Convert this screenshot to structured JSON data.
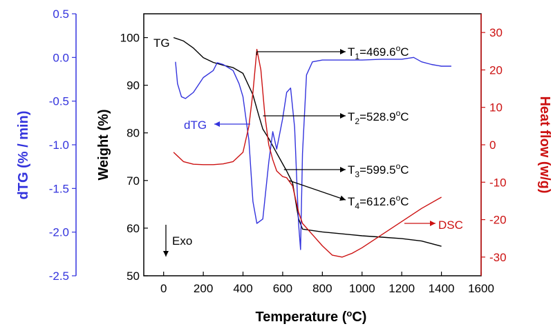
{
  "chart_data": {
    "type": "line",
    "title": "",
    "x_axis": {
      "label": "Temperature (°C)",
      "range": [
        -100,
        1600
      ],
      "ticks": [
        0,
        200,
        400,
        600,
        800,
        1000,
        1200,
        1400,
        1600
      ]
    },
    "y_axes": {
      "weight": {
        "label": "Weight (%)",
        "range": [
          50,
          105
        ],
        "ticks": [
          50,
          60,
          70,
          80,
          90,
          100
        ],
        "color": "#000000"
      },
      "dtg": {
        "label": "dTG (% / min)",
        "range": [
          -2.5,
          0.5
        ],
        "ticks": [
          "-2.5",
          "-2.0",
          "-1.5",
          "-1.0",
          "-0.5",
          "0.0",
          "0.5"
        ],
        "color": "#3333dd"
      },
      "heat_flow": {
        "label": "Heat flow (w/g)",
        "range": [
          -35,
          35
        ],
        "ticks": [
          -30,
          -20,
          -10,
          0,
          10,
          20,
          30
        ],
        "color": "#cc1111"
      }
    },
    "series": [
      {
        "name": "TG",
        "axis": "weight",
        "color": "#000000",
        "points": [
          [
            50,
            100
          ],
          [
            100,
            99.3
          ],
          [
            150,
            97.8
          ],
          [
            200,
            95.8
          ],
          [
            250,
            94.8
          ],
          [
            300,
            94.2
          ],
          [
            350,
            93.7
          ],
          [
            400,
            92.5
          ],
          [
            450,
            88
          ],
          [
            480,
            83.6
          ],
          [
            500,
            80.8
          ],
          [
            530,
            78.8
          ],
          [
            560,
            76.5
          ],
          [
            600,
            73.5
          ],
          [
            620,
            72
          ],
          [
            650,
            69.5
          ],
          [
            680,
            62
          ],
          [
            700,
            59.8
          ],
          [
            800,
            59.2
          ],
          [
            900,
            58.8
          ],
          [
            1000,
            58.4
          ],
          [
            1100,
            58.1
          ],
          [
            1200,
            57.8
          ],
          [
            1300,
            57.3
          ],
          [
            1400,
            56.2
          ]
        ]
      },
      {
        "name": "dTG",
        "axis": "dtg",
        "color": "#3333dd",
        "points": [
          [
            60,
            -0.05
          ],
          [
            70,
            -0.3
          ],
          [
            90,
            -0.45
          ],
          [
            110,
            -0.47
          ],
          [
            150,
            -0.4
          ],
          [
            200,
            -0.23
          ],
          [
            250,
            -0.15
          ],
          [
            270,
            -0.06
          ],
          [
            300,
            -0.08
          ],
          [
            350,
            -0.15
          ],
          [
            380,
            -0.3
          ],
          [
            400,
            -0.45
          ],
          [
            430,
            -0.95
          ],
          [
            450,
            -1.65
          ],
          [
            470,
            -1.9
          ],
          [
            500,
            -1.85
          ],
          [
            530,
            -1.2
          ],
          [
            550,
            -0.85
          ],
          [
            570,
            -1.05
          ],
          [
            600,
            -0.7
          ],
          [
            620,
            -0.4
          ],
          [
            640,
            -0.35
          ],
          [
            660,
            -0.8
          ],
          [
            680,
            -1.9
          ],
          [
            690,
            -2.2
          ],
          [
            700,
            -1.1
          ],
          [
            720,
            -0.2
          ],
          [
            750,
            -0.05
          ],
          [
            800,
            -0.03
          ],
          [
            900,
            -0.03
          ],
          [
            1000,
            -0.03
          ],
          [
            1100,
            -0.02
          ],
          [
            1200,
            -0.02
          ],
          [
            1260,
            0.0
          ],
          [
            1300,
            -0.05
          ],
          [
            1350,
            -0.08
          ],
          [
            1400,
            -0.1
          ],
          [
            1450,
            -0.1
          ]
        ]
      },
      {
        "name": "DSC",
        "axis": "heat_flow",
        "color": "#cc1111",
        "points": [
          [
            50,
            -2
          ],
          [
            100,
            -4.5
          ],
          [
            150,
            -5.2
          ],
          [
            200,
            -5.3
          ],
          [
            250,
            -5.3
          ],
          [
            300,
            -5.1
          ],
          [
            350,
            -4.5
          ],
          [
            400,
            -2
          ],
          [
            430,
            5
          ],
          [
            450,
            14
          ],
          [
            470,
            25.5
          ],
          [
            490,
            20
          ],
          [
            510,
            8
          ],
          [
            530,
            0
          ],
          [
            550,
            -4
          ],
          [
            570,
            -7
          ],
          [
            600,
            -8.5
          ],
          [
            620,
            -8.8
          ],
          [
            650,
            -11
          ],
          [
            680,
            -18
          ],
          [
            700,
            -21
          ],
          [
            750,
            -24
          ],
          [
            800,
            -27
          ],
          [
            850,
            -29.5
          ],
          [
            900,
            -30
          ],
          [
            950,
            -29
          ],
          [
            1000,
            -27.5
          ],
          [
            1100,
            -24
          ],
          [
            1200,
            -20.5
          ],
          [
            1300,
            -17
          ],
          [
            1400,
            -14
          ]
        ]
      }
    ],
    "annotations": {
      "tg_label": "TG",
      "dtg_label": "dTG",
      "dsc_label": "DSC",
      "exo_label": "Exo",
      "t1": {
        "sub": "1",
        "value": "=469.6",
        "unit": "C"
      },
      "t2": {
        "sub": "2",
        "value": "=528.9",
        "unit": "C"
      },
      "t3": {
        "sub": "3",
        "value": "=599.5",
        "unit": "C"
      },
      "t4": {
        "sub": "4",
        "value": "=612.6",
        "unit": "C"
      }
    }
  }
}
